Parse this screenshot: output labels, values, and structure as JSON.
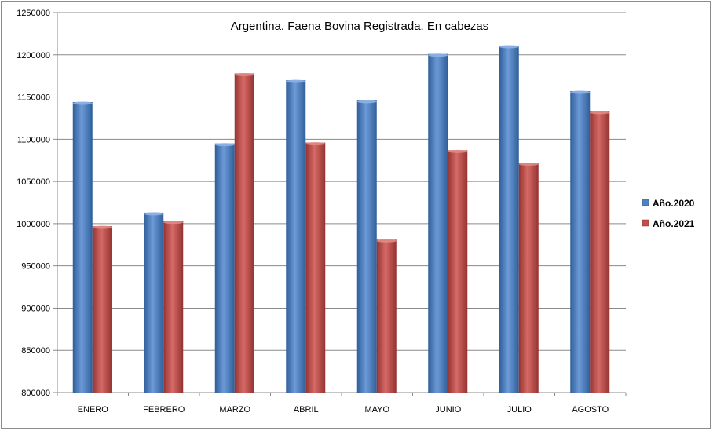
{
  "chart_data": {
    "type": "bar",
    "title": "Argentina. Faena Bovina Registrada. En cabezas",
    "xlabel": "",
    "ylabel": "",
    "categories": [
      "ENERO",
      "FEBRERO",
      "MARZO",
      "ABRIL",
      "MAYO",
      "JUNIO",
      "JULIO",
      "AGOSTO"
    ],
    "series": [
      {
        "name": "Año.2020",
        "color": "#4f81bd",
        "values": [
          1144000,
          1013000,
          1095000,
          1170000,
          1146000,
          1201000,
          1211000,
          1157000
        ]
      },
      {
        "name": "Año.2021",
        "color": "#c0504d",
        "values": [
          997000,
          1003000,
          1178000,
          1096000,
          981000,
          1087000,
          1072000,
          1133000
        ]
      }
    ],
    "ylim": [
      800000,
      1250000
    ],
    "yticks": [
      "800000",
      "850000",
      "900000",
      "950000",
      "1000000",
      "1050000",
      "1100000",
      "1150000",
      "1200000",
      "1250000"
    ],
    "grid": true,
    "legend_position": "right"
  }
}
